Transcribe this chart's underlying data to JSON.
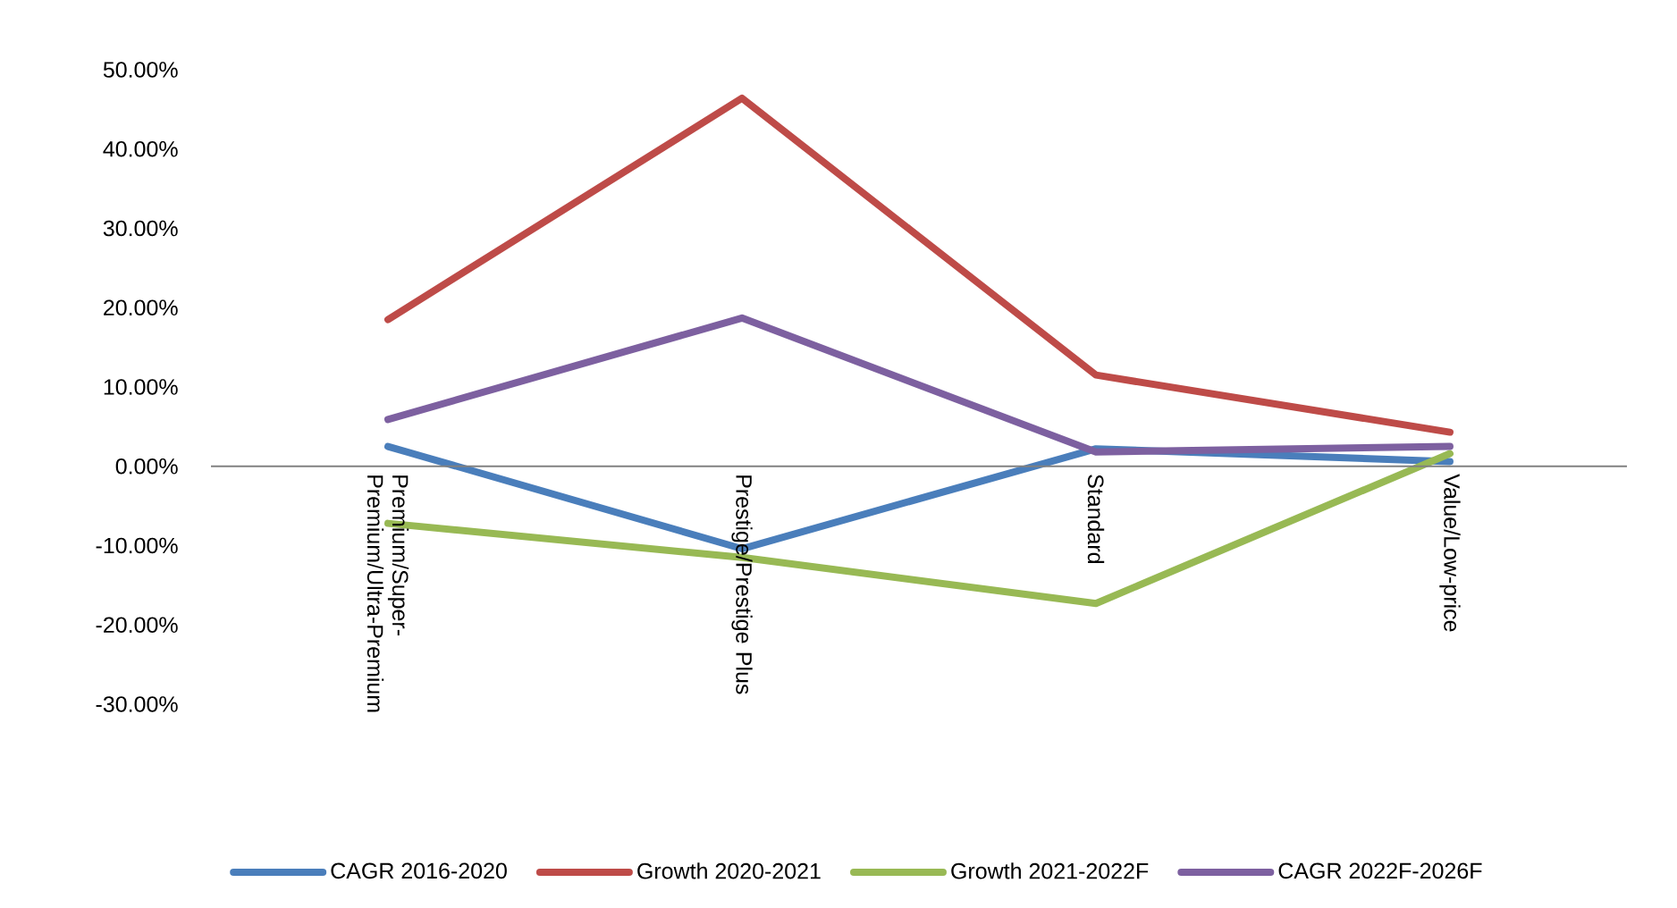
{
  "chart_data": {
    "type": "line",
    "categories": [
      "Premium/Super-Premium/Ultra-Premium",
      "Prestige/Prestige Plus",
      "Standard",
      "Value/Low-price"
    ],
    "series": [
      {
        "name": "CAGR 2016-2020",
        "color": "#4a7ebb",
        "values": [
          2.5,
          -10.4,
          2.2,
          0.6
        ]
      },
      {
        "name": "Growth 2020-2021",
        "color": "#be4b48",
        "values": [
          18.5,
          46.4,
          11.5,
          4.3
        ]
      },
      {
        "name": "Growth 2021-2022F",
        "color": "#98b954",
        "values": [
          -7.2,
          -11.5,
          -17.3,
          1.6
        ]
      },
      {
        "name": "CAGR 2022F-2026F",
        "color": "#7d60a0",
        "values": [
          5.9,
          18.7,
          1.8,
          2.5
        ]
      }
    ],
    "ylim": [
      -30,
      50
    ],
    "yticks": [
      {
        "value": -30,
        "label": "-30.00%"
      },
      {
        "value": -20,
        "label": "-20.00%"
      },
      {
        "value": -10,
        "label": "-10.00%"
      },
      {
        "value": 0,
        "label": "0.00%"
      },
      {
        "value": 10,
        "label": "10.00%"
      },
      {
        "value": 20,
        "label": "20.00%"
      },
      {
        "value": 30,
        "label": "30.00%"
      },
      {
        "value": 40,
        "label": "40.00%"
      },
      {
        "value": 50,
        "label": "50.00%"
      }
    ],
    "grid": false,
    "legend": "bottom",
    "line_style": "solid"
  }
}
